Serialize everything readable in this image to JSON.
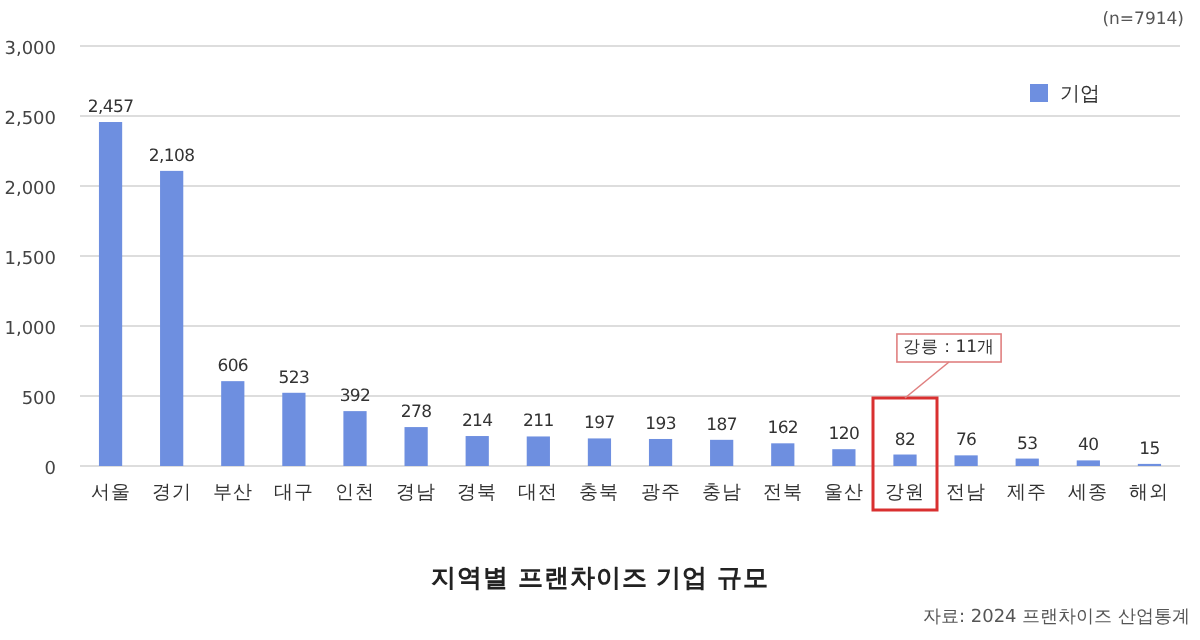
{
  "chart_data": {
    "type": "bar",
    "title": "지역별 프랜차이즈 기업 규모",
    "categories": [
      "서울",
      "경기",
      "부산",
      "대구",
      "인천",
      "경남",
      "경북",
      "대전",
      "충북",
      "광주",
      "충남",
      "전북",
      "울산",
      "강원",
      "전남",
      "제주",
      "세종",
      "해외"
    ],
    "series": [
      {
        "name": "기업",
        "color": "#6e8fe0",
        "values": [
          2457,
          2108,
          606,
          523,
          392,
          278,
          214,
          211,
          197,
          193,
          187,
          162,
          120,
          82,
          76,
          53,
          40,
          15
        ]
      }
    ],
    "ylim": [
      0,
      3000
    ],
    "yticks": [
      {
        "value": 0,
        "label": "0"
      },
      {
        "value": 500,
        "label": "500"
      },
      {
        "value": 1000,
        "label": "1,000"
      },
      {
        "value": 1500,
        "label": "1,500"
      },
      {
        "value": 2000,
        "label": "2,000"
      },
      {
        "value": 2500,
        "label": "2,500"
      },
      {
        "value": 3000,
        "label": "3,000"
      }
    ],
    "value_labels": [
      "2,457",
      "2,108",
      "606",
      "523",
      "392",
      "278",
      "214",
      "211",
      "197",
      "193",
      "187",
      "162",
      "120",
      "82",
      "76",
      "53",
      "40",
      "15"
    ],
    "grid": "y",
    "legend": "top right",
    "annotations": [
      "(n=7914)",
      "강릉 : 11개",
      "자료: 2024 프랜차이즈 산업통계"
    ]
  }
}
